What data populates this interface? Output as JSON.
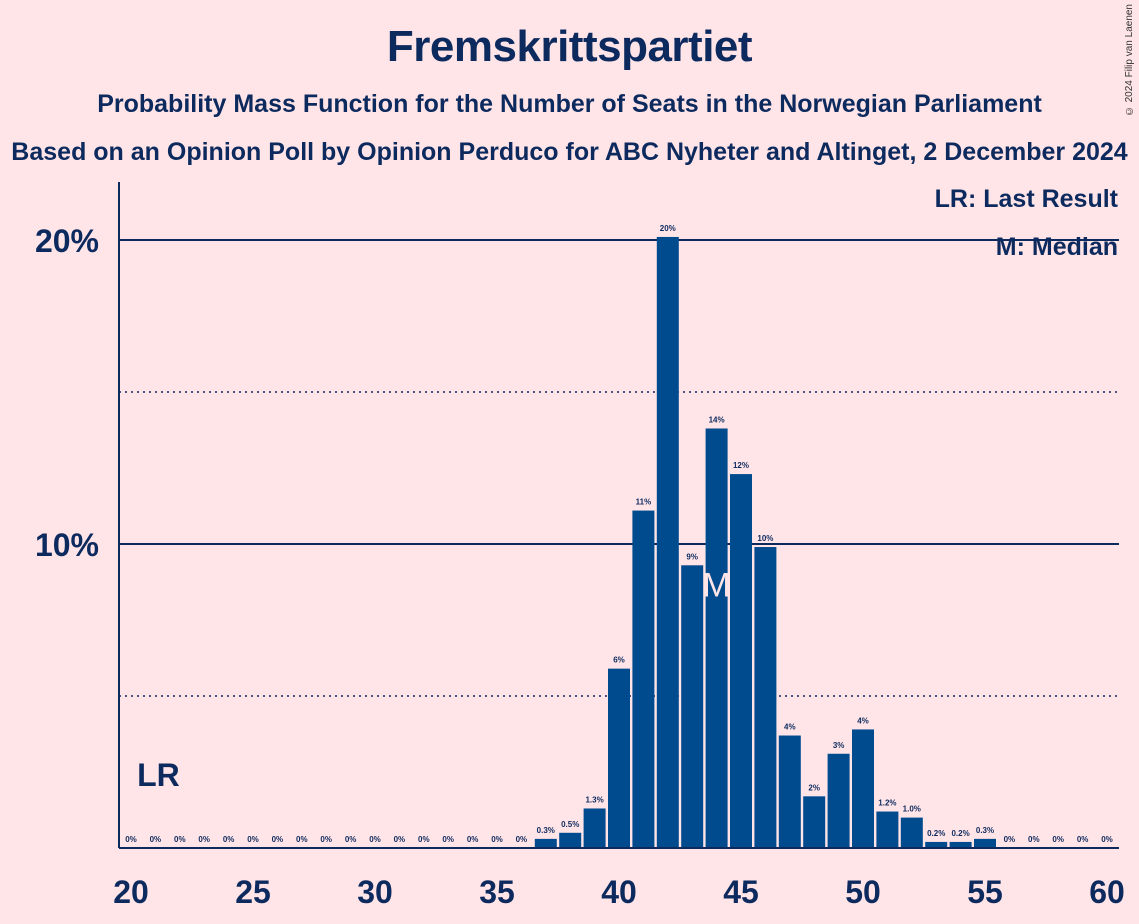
{
  "copyright": "© 2024 Filip van Laenen",
  "chart_data": {
    "type": "bar",
    "title": "Fremskrittspartiet",
    "subtitle": "Probability Mass Function for the Number of Seats in the Norwegian Parliament",
    "subtitle2": "Based on an Opinion Poll by Opinion Perduco for ABC Nyheter and Altinget, 2 December 2024",
    "xlabel": "",
    "ylabel": "",
    "x": [
      20,
      21,
      22,
      23,
      24,
      25,
      26,
      27,
      28,
      29,
      30,
      31,
      32,
      33,
      34,
      35,
      36,
      37,
      38,
      39,
      40,
      41,
      42,
      43,
      44,
      45,
      46,
      47,
      48,
      49,
      50,
      51,
      52,
      53,
      54,
      55,
      56,
      57,
      58,
      59,
      60
    ],
    "values": [
      0,
      0,
      0,
      0,
      0,
      0,
      0,
      0,
      0,
      0,
      0,
      0,
      0,
      0,
      0,
      0,
      0,
      0.3,
      0.5,
      1.3,
      5.9,
      11.1,
      20.1,
      9.3,
      13.8,
      12.3,
      9.9,
      3.7,
      1.7,
      3.1,
      3.9,
      1.2,
      1.0,
      0.2,
      0.2,
      0.3,
      0,
      0,
      0,
      0,
      0
    ],
    "labels": [
      "0%",
      "0%",
      "0%",
      "0%",
      "0%",
      "0%",
      "0%",
      "0%",
      "0%",
      "0%",
      "0%",
      "0%",
      "0%",
      "0%",
      "0%",
      "0%",
      "0%",
      "0.3%",
      "0.5%",
      "1.3%",
      "6%",
      "11%",
      "20%",
      "9%",
      "14%",
      "12%",
      "10%",
      "4%",
      "2%",
      "3%",
      "4%",
      "1.2%",
      "1.0%",
      "0.2%",
      "0.2%",
      "0.3%",
      "0%",
      "0%",
      "0%",
      "0%",
      "0%"
    ],
    "xlim": [
      19.5,
      60.5
    ],
    "ylim": [
      0,
      22
    ],
    "xticks": [
      20,
      25,
      30,
      35,
      40,
      45,
      50,
      55,
      60
    ],
    "yticks": [
      {
        "value": 10,
        "label": "10%"
      },
      {
        "value": 20,
        "label": "20%"
      }
    ],
    "dotted_gridlines": [
      5,
      15
    ],
    "median": 44,
    "median_marker": "M",
    "last_result": 21,
    "last_result_marker": "LR",
    "legend": [
      "LR: Last Result",
      "M: Median"
    ],
    "legend_position": "top-right",
    "bar_color": "#004B8E",
    "text_color": "#0D2A5E",
    "background_color": "#FFE5E8"
  }
}
